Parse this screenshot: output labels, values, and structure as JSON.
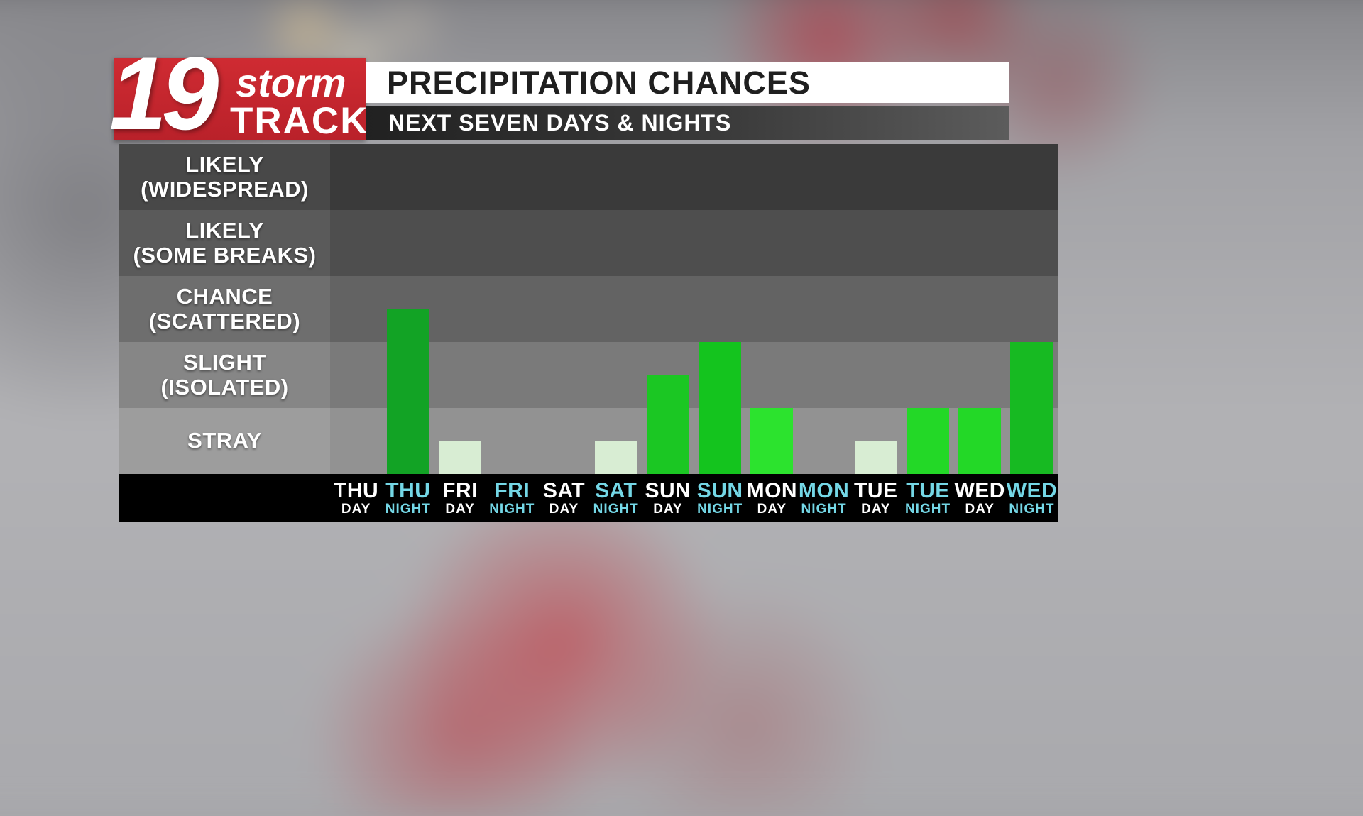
{
  "logo": {
    "number": "19",
    "storm": "storm",
    "track": "TRACK",
    "bg_color": "#c4262c"
  },
  "header": {
    "title": "PRECIPITATION CHANCES",
    "subtitle": "NEXT SEVEN DAYS & NIGHTS"
  },
  "chart_data": {
    "type": "bar",
    "title": "PRECIPITATION CHANCES",
    "subtitle": "NEXT SEVEN DAYS & NIGHTS",
    "value_scale": "band units: 0=none, 1=top of STRAY, 2=top of SLIGHT (ISOLATED), 3=top of CHANCE (SCATTERED), 4=top of LIKELY (SOME BREAKS), 5=top of LIKELY (WIDESPREAD)",
    "ylim": [
      0,
      5
    ],
    "grid": "horizontal shaded bands",
    "bands": [
      {
        "label": "LIKELY (WIDESPREAD)",
        "lines": [
          "LIKELY",
          "(WIDESPREAD)"
        ],
        "label_bg": "#484848",
        "plot_bg": "#3a3a3a"
      },
      {
        "label": "LIKELY (SOME BREAKS)",
        "lines": [
          "LIKELY",
          "(SOME BREAKS)"
        ],
        "label_bg": "#5a5a5a",
        "plot_bg": "#4e4e4e"
      },
      {
        "label": "CHANCE (SCATTERED)",
        "lines": [
          "CHANCE",
          "(SCATTERED)"
        ],
        "label_bg": "#6e6e6e",
        "plot_bg": "#636363"
      },
      {
        "label": "SLIGHT (ISOLATED)",
        "lines": [
          "SLIGHT",
          "(ISOLATED)"
        ],
        "label_bg": "#868686",
        "plot_bg": "#7a7a7a"
      },
      {
        "label": "STRAY",
        "lines": [
          "STRAY"
        ],
        "label_bg": "#9d9d9d",
        "plot_bg": "#929292"
      }
    ],
    "day_label_color": "#ffffff",
    "night_label_color": "#74d7e6",
    "categories": [
      {
        "day": "THU",
        "period": "DAY",
        "value": 0,
        "color": ""
      },
      {
        "day": "THU",
        "period": "NIGHT",
        "value": 2.5,
        "color": "#12a325"
      },
      {
        "day": "FRI",
        "period": "DAY",
        "value": 0.5,
        "color": "#d8edd3"
      },
      {
        "day": "FRI",
        "period": "NIGHT",
        "value": 0,
        "color": ""
      },
      {
        "day": "SAT",
        "period": "DAY",
        "value": 0,
        "color": ""
      },
      {
        "day": "SAT",
        "period": "NIGHT",
        "value": 0.5,
        "color": "#d8edd3"
      },
      {
        "day": "SUN",
        "period": "DAY",
        "value": 1.5,
        "color": "#1bc723"
      },
      {
        "day": "SUN",
        "period": "NIGHT",
        "value": 2.0,
        "color": "#14c41e"
      },
      {
        "day": "MON",
        "period": "DAY",
        "value": 1.0,
        "color": "#2ce32e"
      },
      {
        "day": "MON",
        "period": "NIGHT",
        "value": 0,
        "color": ""
      },
      {
        "day": "TUE",
        "period": "DAY",
        "value": 0.5,
        "color": "#d8edd3"
      },
      {
        "day": "TUE",
        "period": "NIGHT",
        "value": 1.0,
        "color": "#23d827"
      },
      {
        "day": "WED",
        "period": "DAY",
        "value": 1.0,
        "color": "#23d827"
      },
      {
        "day": "WED",
        "period": "NIGHT",
        "value": 2.0,
        "color": "#17ba22"
      }
    ]
  }
}
